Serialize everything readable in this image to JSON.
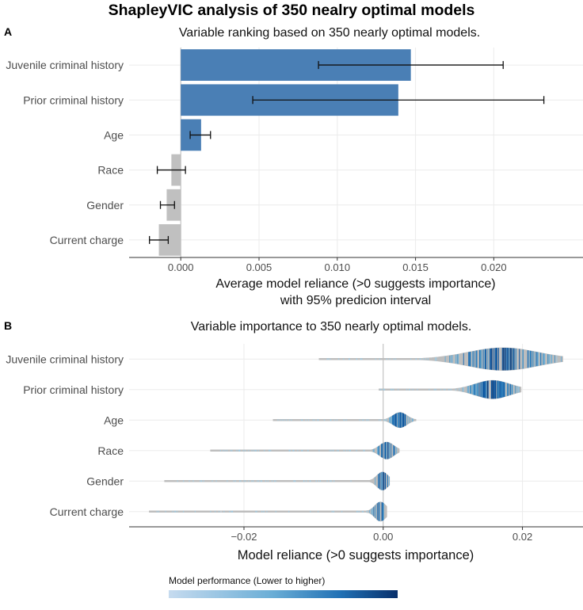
{
  "figure": {
    "title": "ShapleyVIC analysis of 350 nealry optimal models"
  },
  "panel_a": {
    "label": "A",
    "chart_data": {
      "type": "bar",
      "orientation": "horizontal",
      "title": "Variable ranking based on 350 nearly optimal models.",
      "xlabel": "Average model reliance (>0 suggests importance)",
      "xlabel_line2": "with 95% predicion interval",
      "ylabel": "",
      "categories": [
        "Juvenile criminal history",
        "Prior criminal history",
        "Age",
        "Race",
        "Gender",
        "Current charge"
      ],
      "values": [
        0.0147,
        0.0139,
        0.0013,
        -0.0006,
        -0.0009,
        -0.0014
      ],
      "ci_low": [
        0.0088,
        0.0046,
        0.0006,
        -0.0015,
        -0.0013,
        -0.002
      ],
      "ci_high": [
        0.0206,
        0.0232,
        0.0019,
        0.0003,
        -0.0004,
        -0.0008
      ],
      "xlim": [
        -0.0033,
        0.0257
      ],
      "xticks": [
        0,
        0.005,
        0.01,
        0.015,
        0.02
      ],
      "xtick_labels": [
        "0.000",
        "0.005",
        "0.010",
        "0.015",
        "0.020"
      ],
      "colors": {
        "positive": "#4a7fb5",
        "negative": "#c0c0c0",
        "errorbar": "#111111"
      },
      "grid": true,
      "reference_line": 0
    }
  },
  "panel_b": {
    "label": "B",
    "chart_data": {
      "type": "violin",
      "orientation": "horizontal",
      "title": "Variable importance to 350 nearly optimal models.",
      "xlabel": "Model reliance (>0 suggests importance)",
      "categories": [
        "Juvenile criminal history",
        "Prior criminal history",
        "Age",
        "Race",
        "Gender",
        "Current charge"
      ],
      "distributions": [
        {
          "name": "Juvenile criminal history",
          "min": -0.0092,
          "max": 0.0258,
          "mode": 0.0172,
          "spread": 0.005,
          "max_halfwidth": 0.37
        },
        {
          "name": "Prior criminal history",
          "min": -0.0006,
          "max": 0.0198,
          "mode": 0.0157,
          "spread": 0.0025,
          "max_halfwidth": 0.3
        },
        {
          "name": "Age",
          "min": -0.0158,
          "max": 0.0047,
          "mode": 0.0024,
          "spread": 0.001,
          "max_halfwidth": 0.25
        },
        {
          "name": "Race",
          "min": -0.0248,
          "max": 0.0023,
          "mode": 0.0005,
          "spread": 0.001,
          "max_halfwidth": 0.28
        },
        {
          "name": "Gender",
          "min": -0.0314,
          "max": 0.0009,
          "mode": -0.0001,
          "spread": 0.0008,
          "max_halfwidth": 0.3
        },
        {
          "name": "Current charge",
          "min": -0.0336,
          "max": 0.0005,
          "mode": -0.0004,
          "spread": 0.0008,
          "max_halfwidth": 0.32
        }
      ],
      "xlim": [
        -0.0365,
        0.0287
      ],
      "xticks": [
        -0.02,
        0,
        0.02
      ],
      "xtick_labels": [
        "−0.02",
        "0.00",
        "0.02"
      ],
      "grid": true,
      "reference_line": 0,
      "legend": {
        "title": "Model performance (Lower to higher)",
        "position": "bottom-left",
        "gradient": [
          "#c6dbef",
          "#6baed6",
          "#2171b5",
          "#08306b"
        ]
      }
    }
  }
}
